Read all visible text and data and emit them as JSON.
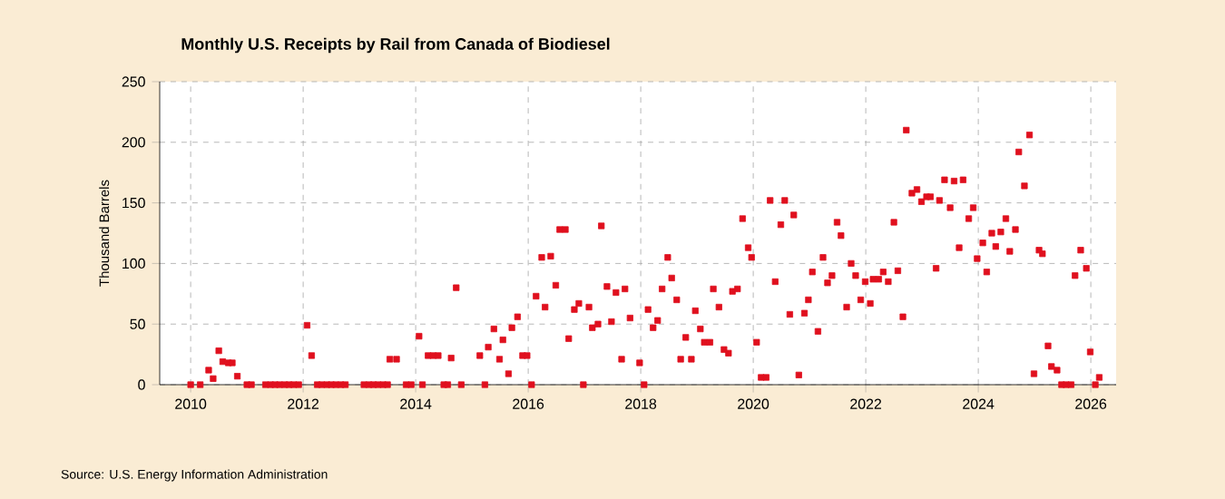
{
  "chart_data": {
    "type": "scatter",
    "title": "Monthly U.S. Receipts by Rail from Canada of Biodiesel",
    "ylabel": "Thousand Barrels",
    "annotations": [
      "Source: U.S. Energy Information Administration"
    ],
    "xlim": [
      2009.45,
      2026.45
    ],
    "xticks": [
      2010,
      2012,
      2014,
      2016,
      2018,
      2020,
      2022,
      2024,
      2026
    ],
    "ylim": [
      0,
      250
    ],
    "yticks": [
      0,
      50,
      100,
      150,
      200,
      250
    ],
    "grid": true,
    "marker": "square",
    "series": [
      {
        "color": "#e0101e",
        "x": [
          2010.0,
          2010.17,
          2010.32,
          2010.4,
          2010.5,
          2010.57,
          2010.67,
          2010.74,
          2010.83,
          2011.0,
          2011.08,
          2011.33,
          2011.42,
          2011.5,
          2011.58,
          2011.67,
          2011.75,
          2011.83,
          2011.92,
          2012.07,
          2012.15,
          2012.25,
          2012.33,
          2012.42,
          2012.5,
          2012.58,
          2012.67,
          2012.75,
          2013.08,
          2013.17,
          2013.25,
          2013.33,
          2013.42,
          2013.5,
          2013.54,
          2013.66,
          2013.83,
          2013.92,
          2014.06,
          2014.12,
          2014.22,
          2014.31,
          2014.4,
          2014.5,
          2014.57,
          2014.63,
          2014.72,
          2014.81,
          2015.14,
          2015.23,
          2015.29,
          2015.39,
          2015.49,
          2015.55,
          2015.65,
          2015.71,
          2015.81,
          2015.9,
          2015.98,
          2016.06,
          2016.14,
          2016.24,
          2016.3,
          2016.4,
          2016.49,
          2016.56,
          2016.66,
          2016.72,
          2016.82,
          2016.9,
          2016.98,
          2017.08,
          2017.14,
          2017.24,
          2017.3,
          2017.4,
          2017.48,
          2017.56,
          2017.66,
          2017.72,
          2017.81,
          2017.98,
          2018.06,
          2018.13,
          2018.22,
          2018.3,
          2018.38,
          2018.48,
          2018.55,
          2018.64,
          2018.71,
          2018.8,
          2018.9,
          2018.97,
          2019.06,
          2019.13,
          2019.23,
          2019.29,
          2019.39,
          2019.48,
          2019.56,
          2019.63,
          2019.72,
          2019.81,
          2019.91,
          2019.97,
          2020.06,
          2020.14,
          2020.23,
          2020.3,
          2020.39,
          2020.49,
          2020.56,
          2020.65,
          2020.72,
          2020.81,
          2020.91,
          2020.98,
          2021.05,
          2021.15,
          2021.24,
          2021.32,
          2021.4,
          2021.49,
          2021.56,
          2021.66,
          2021.74,
          2021.82,
          2021.91,
          2021.99,
          2022.08,
          2022.13,
          2022.23,
          2022.31,
          2022.4,
          2022.5,
          2022.57,
          2022.66,
          2022.72,
          2022.82,
          2022.91,
          2022.99,
          2023.08,
          2023.15,
          2023.25,
          2023.31,
          2023.4,
          2023.5,
          2023.57,
          2023.66,
          2023.73,
          2023.83,
          2023.91,
          2023.98,
          2024.08,
          2024.15,
          2024.24,
          2024.31,
          2024.4,
          2024.49,
          2024.56,
          2024.66,
          2024.72,
          2024.82,
          2024.91,
          2024.99,
          2025.08,
          2025.14,
          2025.24,
          2025.3,
          2025.4,
          2025.48,
          2025.56,
          2025.65,
          2025.72,
          2025.82,
          2025.92,
          2025.99,
          2026.08,
          2026.15
        ],
        "values": [
          0,
          0,
          12,
          5,
          28,
          19,
          18,
          18,
          7,
          0,
          0,
          0,
          0,
          0,
          0,
          0,
          0,
          0,
          0,
          49,
          24,
          0,
          0,
          0,
          0,
          0,
          0,
          0,
          0,
          0,
          0,
          0,
          0,
          0,
          21,
          21,
          0,
          0,
          40,
          0,
          24,
          24,
          24,
          0,
          0,
          22,
          80,
          0,
          24,
          0,
          31,
          46,
          21,
          37,
          9,
          47,
          56,
          24,
          24,
          0,
          73,
          105,
          64,
          106,
          82,
          128,
          128,
          38,
          62,
          67,
          0,
          64,
          47,
          50,
          131,
          81,
          52,
          76,
          21,
          79,
          55,
          18,
          0,
          62,
          47,
          53,
          79,
          105,
          88,
          70,
          21,
          39,
          21,
          61,
          46,
          35,
          35,
          79,
          64,
          29,
          26,
          77,
          79,
          137,
          113,
          105,
          35,
          6,
          6,
          152,
          85,
          132,
          152,
          58,
          140,
          8,
          59,
          70,
          93,
          44,
          105,
          84,
          90,
          134,
          123,
          64,
          100,
          90,
          70,
          85,
          67,
          87,
          87,
          93,
          85,
          134,
          94,
          56,
          210,
          158,
          161,
          151,
          155,
          155,
          96,
          152,
          169,
          146,
          168,
          113,
          169,
          137,
          146,
          104,
          117,
          93,
          125,
          114,
          126,
          137,
          110,
          128,
          192,
          164,
          206,
          9,
          111,
          108,
          32,
          15,
          12,
          0,
          0,
          0,
          90,
          111,
          96,
          27,
          0,
          6
        ]
      }
    ]
  }
}
